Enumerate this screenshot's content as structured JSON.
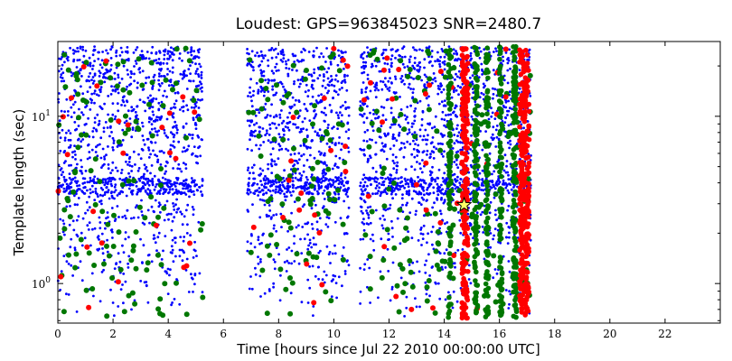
{
  "chart_data": {
    "type": "scatter",
    "title": "Loudest: GPS=963845023 SNR=2480.7",
    "xlabel": "Time [hours since Jul 22 2010 00:00:00 UTC]",
    "ylabel": "Template length (sec)",
    "xlim": [
      0,
      24
    ],
    "ylim": [
      0.58,
      28
    ],
    "yscale": "log",
    "grid": false,
    "x_ticks": [
      0,
      2,
      4,
      6,
      8,
      10,
      12,
      14,
      16,
      18,
      20,
      22
    ],
    "x_tick_labels": [
      "0",
      "2",
      "4",
      "6",
      "8",
      "10",
      "12",
      "14",
      "16",
      "18",
      "20",
      "22"
    ],
    "y_major_ticks": [
      1,
      10
    ],
    "y_major_tick_labels": [
      "10^0",
      "10^1"
    ],
    "y_tick_base": "10",
    "y_tick_exponents": [
      "0",
      "1"
    ],
    "y_minor_ticks": [
      0.6,
      0.7,
      0.8,
      0.9,
      2,
      3,
      4,
      5,
      6,
      7,
      8,
      9,
      20
    ],
    "segments": [
      {
        "start": 0.0,
        "end": 5.25
      },
      {
        "start": 6.85,
        "end": 10.55
      },
      {
        "start": 10.95,
        "end": 17.15
      }
    ],
    "dense_columns": [
      {
        "x": 14.2,
        "width": 0.1,
        "color": "green"
      },
      {
        "x": 14.75,
        "width": 0.22,
        "color": "red"
      },
      {
        "x": 15.15,
        "width": 0.12,
        "color": "green"
      },
      {
        "x": 15.55,
        "width": 0.12,
        "color": "green"
      },
      {
        "x": 16.05,
        "width": 0.1,
        "color": "green"
      },
      {
        "x": 16.55,
        "width": 0.14,
        "color": "green"
      },
      {
        "x": 16.9,
        "width": 0.35,
        "color": "red"
      }
    ],
    "colors": {
      "low": "#0000ff",
      "mid": "#007700",
      "high": "#ff0000",
      "loudest_marker": "#ffff66"
    },
    "loudest": {
      "x": 14.72,
      "y": 2.95,
      "marker": "star"
    }
  }
}
